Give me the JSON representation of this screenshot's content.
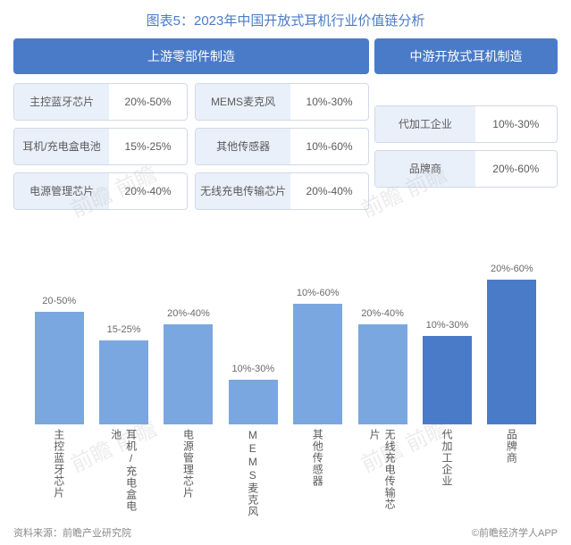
{
  "title": "图表5：2023年中国开放式耳机行业价值链分析",
  "categories": {
    "upstream": "上游零部件制造",
    "midstream": "中游开放式耳机制造"
  },
  "upstream_items": [
    {
      "label": "主控蓝牙芯片",
      "value": "20%-50%"
    },
    {
      "label": "MEMS麦克风",
      "value": "10%-30%"
    },
    {
      "label": "耳机/充电盒电池",
      "value": "15%-25%"
    },
    {
      "label": "其他传感器",
      "value": "10%-60%"
    },
    {
      "label": "电源管理芯片",
      "value": "20%-40%"
    },
    {
      "label": "无线充电传输芯片",
      "value": "20%-40%"
    }
  ],
  "midstream_items": [
    {
      "label": "代加工企业",
      "value": "10%-30%"
    },
    {
      "label": "品牌商",
      "value": "20%-60%"
    }
  ],
  "chart": {
    "type": "bar",
    "max_height": 180,
    "bars": [
      {
        "name": "主控蓝牙芯片",
        "label": "20-50%",
        "height_pct": 70,
        "color": "#7ba7e0"
      },
      {
        "name": "耳机/充电盒电池",
        "label": "15-25%",
        "height_pct": 52,
        "color": "#7ba7e0"
      },
      {
        "name": "电源管理芯片",
        "label": "20%-40%",
        "height_pct": 62,
        "color": "#7ba7e0"
      },
      {
        "name": "MEMS麦克风",
        "label": "10%-30%",
        "height_pct": 28,
        "color": "#7ba7e0"
      },
      {
        "name": "其他传感器",
        "label": "10%-60%",
        "height_pct": 75,
        "color": "#7ba7e0"
      },
      {
        "name": "无线充电传输芯片",
        "label": "20%-40%",
        "height_pct": 62,
        "color": "#7ba7e0"
      },
      {
        "name": "代加工企业",
        "label": "10%-30%",
        "height_pct": 55,
        "color": "#4a7bc8"
      },
      {
        "name": "品牌商",
        "label": "20%-60%",
        "height_pct": 90,
        "color": "#4a7bc8"
      }
    ]
  },
  "footer": {
    "source": "资料来源：前瞻产业研究院",
    "brand": "©前瞻经济学人APP"
  },
  "watermark": "前瞻 前瞻"
}
